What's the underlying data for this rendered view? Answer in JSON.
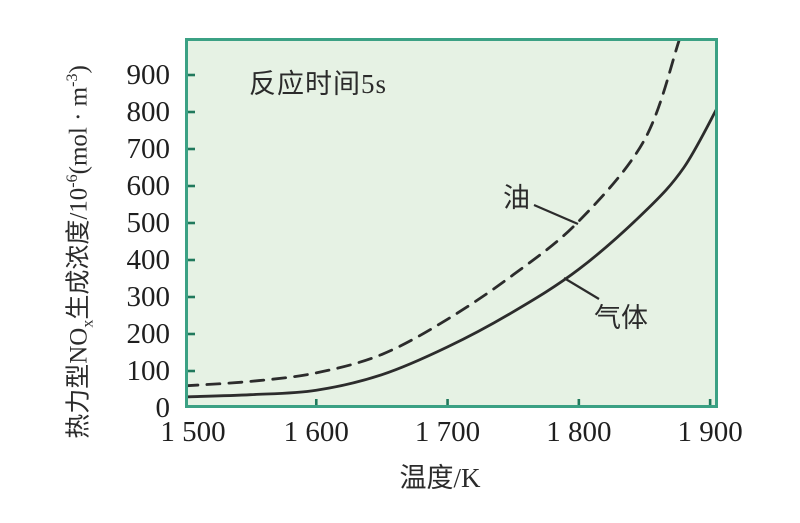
{
  "chart_data": {
    "type": "line",
    "title": "",
    "xlabel": "温度/K",
    "ylabel": "热力型NOx生成浓度/10^-6(mol·m^-3)",
    "annotation": "反应时间5s",
    "legend_position": "inline-labels",
    "grid": false,
    "xlim": [
      1500,
      1906
    ],
    "ylim": [
      0,
      1000
    ],
    "x_ticks": [
      {
        "value": 1500,
        "label": "1 500"
      },
      {
        "value": 1600,
        "label": "1 600"
      },
      {
        "value": 1700,
        "label": "1 700"
      },
      {
        "value": 1800,
        "label": "1 800"
      },
      {
        "value": 1900,
        "label": "1 900"
      }
    ],
    "y_ticks": [
      {
        "value": 0,
        "label": "0"
      },
      {
        "value": 100,
        "label": "100"
      },
      {
        "value": 200,
        "label": "200"
      },
      {
        "value": 300,
        "label": "300"
      },
      {
        "value": 400,
        "label": "400"
      },
      {
        "value": 500,
        "label": "500"
      },
      {
        "value": 600,
        "label": "600"
      },
      {
        "value": 700,
        "label": "700"
      },
      {
        "value": 800,
        "label": "800"
      },
      {
        "value": 900,
        "label": "900"
      }
    ],
    "series": [
      {
        "name": "油",
        "style": "dashed",
        "points": [
          [
            1500,
            60
          ],
          [
            1550,
            72
          ],
          [
            1600,
            95
          ],
          [
            1650,
            145
          ],
          [
            1700,
            240
          ],
          [
            1750,
            360
          ],
          [
            1800,
            505
          ],
          [
            1850,
            725
          ],
          [
            1877,
            1000
          ],
          [
            1888,
            1120
          ]
        ]
      },
      {
        "name": "气体",
        "style": "solid",
        "points": [
          [
            1500,
            30
          ],
          [
            1550,
            36
          ],
          [
            1600,
            48
          ],
          [
            1650,
            90
          ],
          [
            1700,
            165
          ],
          [
            1750,
            260
          ],
          [
            1800,
            375
          ],
          [
            1850,
            530
          ],
          [
            1880,
            650
          ],
          [
            1906,
            815
          ]
        ]
      }
    ],
    "y_axis_label_parts": {
      "p1": "热力型NO",
      "sub": "x",
      "p2": "生成浓度/10",
      "sup1": "-6",
      "p3": "(mol · m",
      "sup2": "-3",
      "p4": ")"
    },
    "colors": {
      "plot_bg": "#e6f2e4",
      "border": "#3ba184",
      "tick": "#20795c",
      "curve": "#2c2c2c",
      "text": "#222222"
    }
  }
}
